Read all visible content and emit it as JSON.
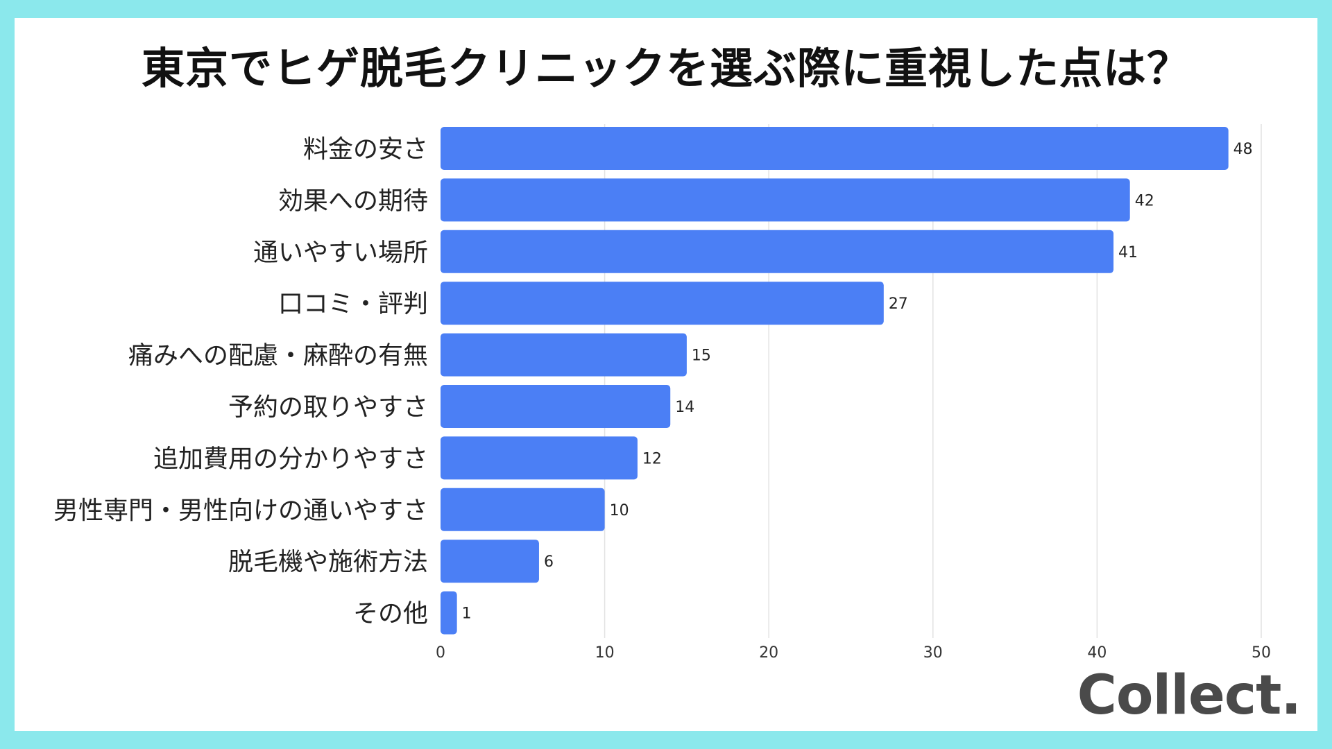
{
  "chart_data": {
    "type": "bar",
    "orientation": "horizontal",
    "title": "東京でヒゲ脱毛クリニックを選ぶ際に重視した点は？",
    "categories": [
      "料金の安さ",
      "効果への期待",
      "通いやすい場所",
      "口コミ・評判",
      "痛みへの配慮・麻酔の有無",
      "予約の取りやすさ",
      "追加費用の分かりやすさ",
      "男性専門・男性向けの通いやすさ",
      "脱毛機や施術方法",
      "その他"
    ],
    "values": [
      48,
      42,
      41,
      27,
      15,
      14,
      12,
      10,
      6,
      1
    ],
    "xlim": [
      0,
      50
    ],
    "xticks": [
      0,
      10,
      20,
      30,
      40,
      50
    ],
    "grid": true,
    "bar_color": "#4b7ff5",
    "grid_color": "#e2e2e2"
  },
  "brand": {
    "logo_text": "Collect."
  }
}
